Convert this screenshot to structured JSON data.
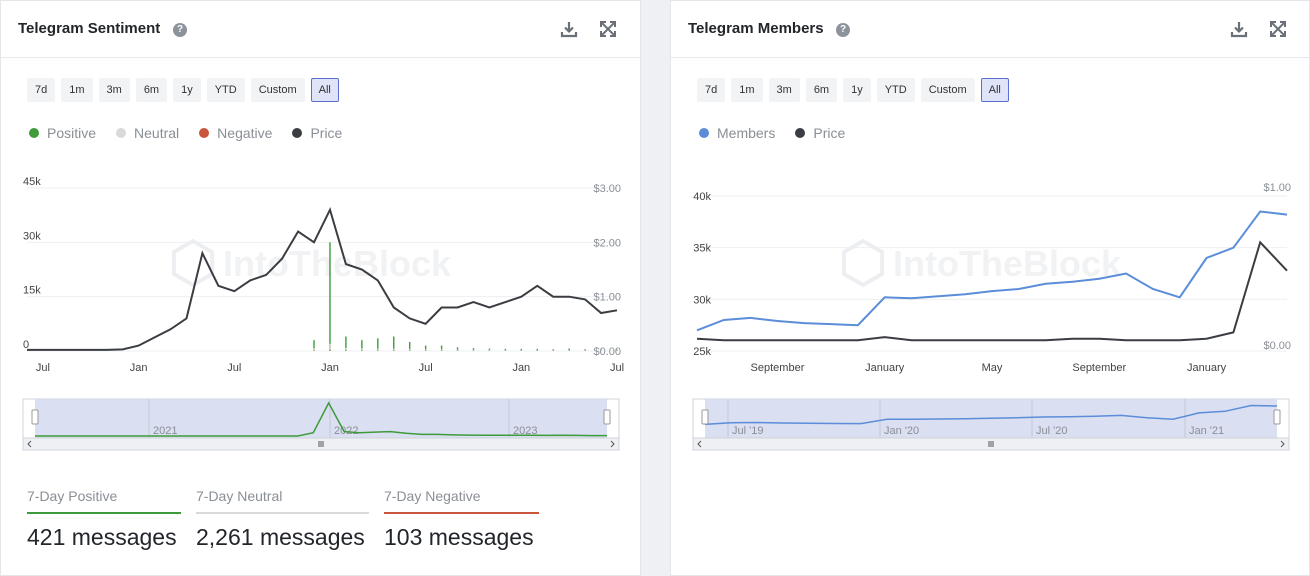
{
  "colors": {
    "positive": "#3e9b3a",
    "neutral": "#d9d9d9",
    "negative": "#c9553b",
    "price": "#3a3d42",
    "members": "#5b8dd9",
    "active_border": "#5b6fd1",
    "navigator_fill": "#d6dbef"
  },
  "icons": [
    "help-icon",
    "download-icon",
    "expand-icon",
    "grip-icon",
    "arrow-left-icon",
    "arrow-right-icon",
    "intotheblock-logo-icon"
  ],
  "range_buttons": [
    "7d",
    "1m",
    "3m",
    "6m",
    "1y",
    "YTD",
    "Custom",
    "All"
  ],
  "active_range": "All",
  "watermark": "IntoTheBlock",
  "sentiment": {
    "title": "Telegram Sentiment",
    "legend": [
      "Positive",
      "Neutral",
      "Negative",
      "Price"
    ],
    "stats": [
      {
        "label": "7-Day Positive",
        "value": "421 messages",
        "color": "#3e9b3a"
      },
      {
        "label": "7-Day Neutral",
        "value": "2,261 messages",
        "color": "#d9d9d9"
      },
      {
        "label": "7-Day Negative",
        "value": "103 messages",
        "color": "#c9553b"
      }
    ]
  },
  "members": {
    "title": "Telegram Members",
    "legend": [
      "Members",
      "Price"
    ]
  },
  "chart_data": [
    {
      "type": "line",
      "title": "Telegram Sentiment",
      "x_ticks": [
        "Jul",
        "Jan",
        "Jul",
        "Jan",
        "Jul",
        "Jan",
        "Jul"
      ],
      "y_left_ticks": [
        "0",
        "15k",
        "30k",
        "45k"
      ],
      "y_left_range": [
        0,
        45000
      ],
      "y_right_ticks": [
        "$0.00",
        "$1.00",
        "$2.00",
        "$3.00"
      ],
      "y_right_range": [
        0,
        3
      ],
      "navigator_labels": [
        "2021",
        "2022",
        "2023"
      ],
      "legend_position": "top-left",
      "grid": true,
      "x": [
        "2020-06",
        "2020-07",
        "2020-08",
        "2020-09",
        "2020-10",
        "2020-11",
        "2020-12",
        "2021-01",
        "2021-02",
        "2021-03",
        "2021-04",
        "2021-05",
        "2021-06",
        "2021-07",
        "2021-08",
        "2021-09",
        "2021-10",
        "2021-11",
        "2021-12",
        "2022-01",
        "2022-02",
        "2022-03",
        "2022-04",
        "2022-05",
        "2022-06",
        "2022-07",
        "2022-08",
        "2022-09",
        "2022-10",
        "2022-11",
        "2022-12",
        "2023-01",
        "2023-02",
        "2023-03",
        "2023-04",
        "2023-05",
        "2023-06",
        "2023-07"
      ],
      "series": [
        {
          "name": "Price",
          "axis": "right",
          "values": [
            0.02,
            0.02,
            0.02,
            0.02,
            0.02,
            0.02,
            0.03,
            0.1,
            0.25,
            0.4,
            0.6,
            1.8,
            1.2,
            1.1,
            1.3,
            1.4,
            1.7,
            2.2,
            2.0,
            2.6,
            1.6,
            1.5,
            1.3,
            0.8,
            0.6,
            0.5,
            0.8,
            0.8,
            0.9,
            0.8,
            0.9,
            1.0,
            1.2,
            1.0,
            1.0,
            0.95,
            0.7,
            0.75
          ]
        },
        {
          "name": "Positive",
          "axis": "left",
          "values": [
            0,
            0,
            0,
            0,
            0,
            0,
            0,
            0,
            0,
            0,
            0,
            0,
            0,
            0,
            0,
            0,
            0,
            0,
            3000,
            30000,
            4000,
            3000,
            3500,
            4000,
            2500,
            1500,
            1500,
            1000,
            800,
            700,
            600,
            600,
            600,
            500,
            700,
            500,
            400,
            400
          ]
        },
        {
          "name": "Neutral",
          "axis": "left",
          "values": [
            0,
            0,
            0,
            0,
            0,
            0,
            0,
            0,
            0,
            0,
            0,
            0,
            0,
            0,
            0,
            0,
            0,
            0,
            800,
            2000,
            900,
            800,
            700,
            700,
            600,
            500,
            500,
            400,
            400,
            400,
            300,
            300,
            300,
            300,
            300,
            300,
            300,
            300
          ]
        },
        {
          "name": "Negative",
          "axis": "left",
          "values": [
            0,
            0,
            0,
            0,
            0,
            0,
            0,
            0,
            0,
            0,
            0,
            0,
            0,
            0,
            0,
            0,
            0,
            0,
            100,
            300,
            200,
            150,
            150,
            150,
            100,
            100,
            100,
            80,
            80,
            80,
            60,
            60,
            60,
            60,
            60,
            60,
            50,
            50
          ]
        }
      ]
    },
    {
      "type": "line",
      "title": "Telegram Members",
      "x_ticks": [
        "September",
        "January",
        "May",
        "September",
        "January"
      ],
      "y_left_ticks": [
        "25k",
        "30k",
        "35k",
        "40k"
      ],
      "y_left_range": [
        25000,
        40000
      ],
      "y_right_ticks": [
        "$0.00",
        "$1.00"
      ],
      "y_right_range": [
        0,
        1
      ],
      "navigator_labels": [
        "Jul '19",
        "Jan '20",
        "Jul '20",
        "Jan '21"
      ],
      "legend_position": "top-left",
      "grid": true,
      "x": [
        "2019-06",
        "2019-07",
        "2019-08",
        "2019-09",
        "2019-10",
        "2019-11",
        "2019-12",
        "2020-01",
        "2020-02",
        "2020-03",
        "2020-04",
        "2020-05",
        "2020-06",
        "2020-07",
        "2020-08",
        "2020-09",
        "2020-10",
        "2020-11",
        "2020-12",
        "2021-01",
        "2021-02",
        "2021-03",
        "2021-04"
      ],
      "series": [
        {
          "name": "Members",
          "axis": "left",
          "values": [
            27000,
            28000,
            28200,
            27900,
            27700,
            27600,
            27500,
            30200,
            30100,
            30300,
            30500,
            30800,
            31000,
            31500,
            31700,
            32000,
            32500,
            31000,
            30200,
            34000,
            35000,
            38500,
            38200
          ]
        },
        {
          "name": "Price",
          "axis": "right",
          "values": [
            0.04,
            0.03,
            0.03,
            0.03,
            0.03,
            0.03,
            0.03,
            0.05,
            0.03,
            0.03,
            0.03,
            0.03,
            0.03,
            0.03,
            0.04,
            0.04,
            0.03,
            0.03,
            0.03,
            0.04,
            0.08,
            0.65,
            0.47
          ]
        }
      ]
    }
  ]
}
